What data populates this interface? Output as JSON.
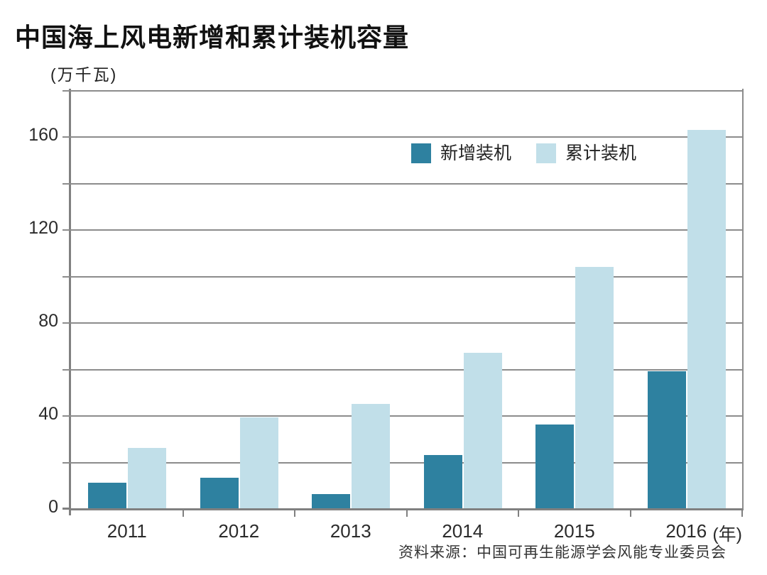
{
  "header": {
    "title": "中国海上风电新增和累计装机容量"
  },
  "y_axis": {
    "unit_label": "(万千瓦)"
  },
  "x_axis": {
    "unit_label": "(年)"
  },
  "footer": {
    "source": "资料来源：中国可再生能源学会风能专业委员会"
  },
  "colors": {
    "new_series": "#2E81A0",
    "cumulative_series": "#C1DFE9",
    "gridline": "#8C8C8C",
    "axis": "#808080",
    "text": "#2B2B2B",
    "title": "#111111"
  },
  "chart_data": {
    "type": "bar",
    "title": "中国海上风电新增和累计装机容量",
    "categories": [
      "2011",
      "2012",
      "2013",
      "2014",
      "2015",
      "2016"
    ],
    "series": [
      {
        "name": "新增装机",
        "color": "#2E81A0",
        "values": [
          11,
          13,
          6,
          23,
          36,
          59
        ]
      },
      {
        "name": "累计装机",
        "color": "#C1DFE9",
        "values": [
          26,
          39,
          45,
          67,
          104,
          163
        ]
      }
    ],
    "xlabel": "年",
    "ylabel": "万千瓦",
    "ylim": [
      0,
      180
    ],
    "y_major_ticks": [
      0,
      40,
      80,
      120,
      160
    ],
    "y_gridline_step": 20,
    "grid": true,
    "legend_position": "top-center-inside",
    "source": "资料来源：中国可再生能源学会风能专业委员会"
  }
}
